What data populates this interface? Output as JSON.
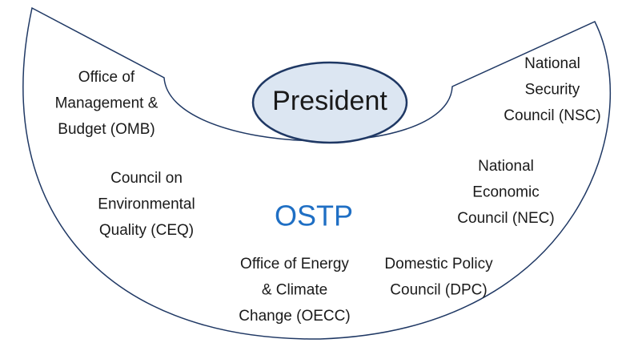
{
  "center": {
    "label": "President"
  },
  "group": {
    "label": "OSTP"
  },
  "nodes": [
    {
      "lines": [
        "Office of",
        "Management &",
        "Budget (OMB)"
      ]
    },
    {
      "lines": [
        "National",
        "Security",
        "Council (NSC)"
      ]
    },
    {
      "lines": [
        "Council on",
        "Environmental",
        "Quality (CEQ)"
      ]
    },
    {
      "lines": [
        "National",
        "Economic",
        "Council (NEC)"
      ]
    },
    {
      "lines": [
        "Office of Energy",
        "& Climate",
        "Change (OECC)"
      ]
    },
    {
      "lines": [
        "Domestic Policy",
        "Council (DPC)"
      ]
    }
  ]
}
